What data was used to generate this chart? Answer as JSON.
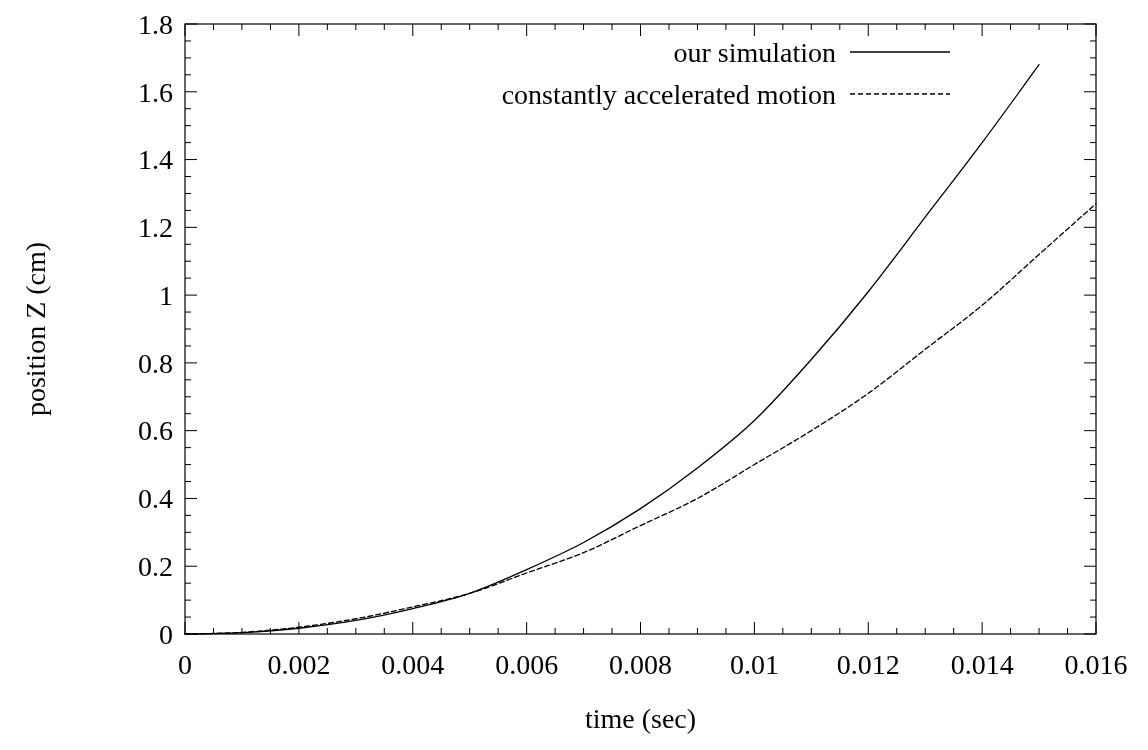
{
  "chart_data": {
    "type": "line",
    "xlabel": "time (sec)",
    "ylabel": "position Z (cm)",
    "xlim": [
      0,
      0.016
    ],
    "ylim": [
      0,
      1.8
    ],
    "xticks": [
      0,
      0.002,
      0.004,
      0.006,
      0.008,
      0.01,
      0.012,
      0.014,
      0.016
    ],
    "yticks": [
      0,
      0.2,
      0.4,
      0.6,
      0.8,
      1,
      1.2,
      1.4,
      1.6,
      1.8
    ],
    "grid": false,
    "legend": "top right",
    "marker": "none",
    "series": [
      {
        "name": "our simulation",
        "color": "#000000",
        "line_style": "solid",
        "x": [
          0,
          0.001,
          0.002,
          0.003,
          0.004,
          0.005,
          0.006,
          0.007,
          0.008,
          0.009,
          0.01,
          0.011,
          0.012,
          0.013,
          0.014,
          0.015
        ],
        "values": [
          0,
          0.004,
          0.017,
          0.04,
          0.075,
          0.12,
          0.19,
          0.27,
          0.37,
          0.49,
          0.63,
          0.81,
          1.01,
          1.23,
          1.45,
          1.68
        ]
      },
      {
        "name": "constantly accelerated motion",
        "color": "#000000",
        "line_style": "dashed",
        "x": [
          0,
          0.001,
          0.002,
          0.003,
          0.004,
          0.005,
          0.006,
          0.007,
          0.008,
          0.009,
          0.01,
          0.011,
          0.012,
          0.013,
          0.014,
          0.015,
          0.016
        ],
        "values": [
          0,
          0.005,
          0.02,
          0.045,
          0.08,
          0.12,
          0.18,
          0.24,
          0.32,
          0.4,
          0.5,
          0.6,
          0.71,
          0.84,
          0.97,
          1.12,
          1.27
        ]
      }
    ]
  }
}
